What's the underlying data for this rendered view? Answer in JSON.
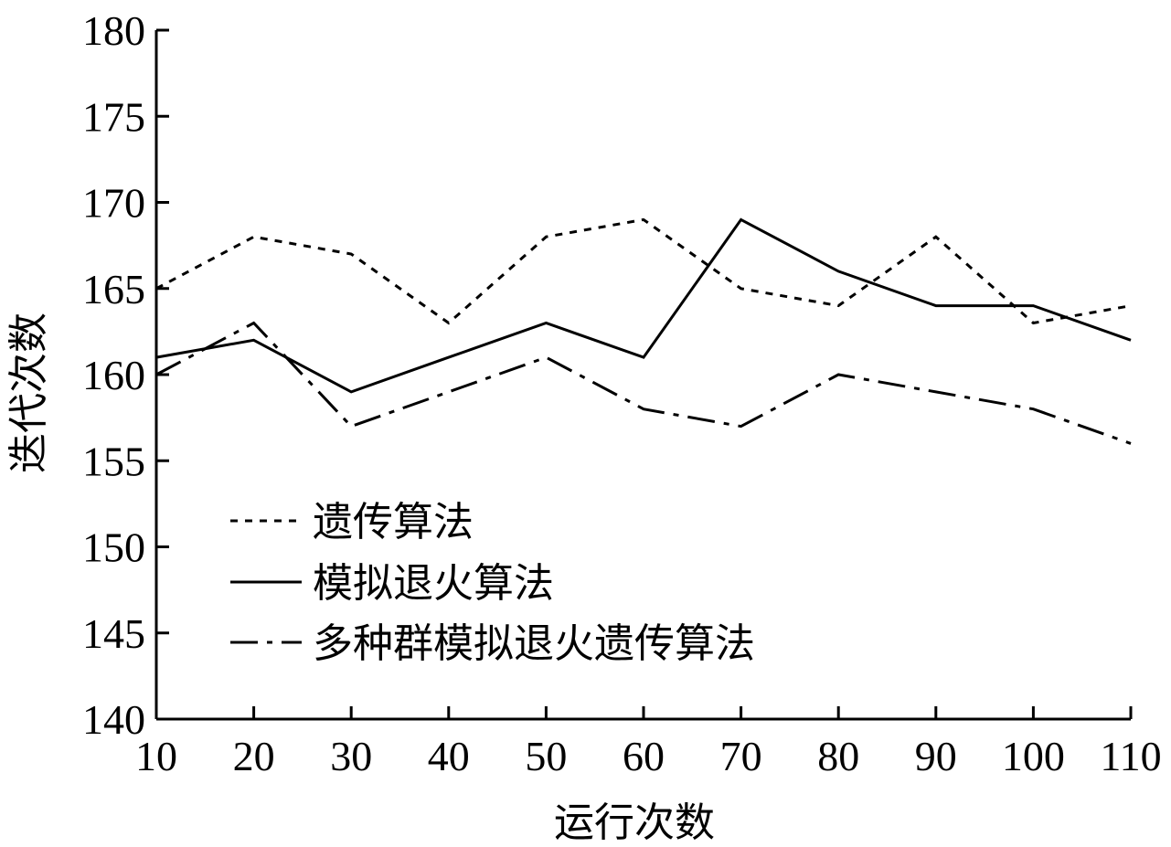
{
  "chart_data": {
    "type": "line",
    "title": "",
    "xlabel": "运行次数",
    "ylabel": "迭代次数",
    "x": [
      10,
      20,
      30,
      40,
      50,
      60,
      70,
      80,
      90,
      100,
      110
    ],
    "xlim": [
      10,
      110
    ],
    "ylim": [
      140,
      180
    ],
    "xticks": [
      "10",
      "20",
      "30",
      "40",
      "50",
      "60",
      "70",
      "80",
      "90",
      "100",
      "110"
    ],
    "yticks": [
      "140",
      "145",
      "150",
      "155",
      "160",
      "165",
      "170",
      "175",
      "180"
    ],
    "grid": false,
    "legend_position": "lower-left",
    "series": [
      {
        "name": "遗传算法",
        "style": "dotted",
        "color": "#000000",
        "values": [
          165,
          168,
          167,
          163,
          168,
          169,
          165,
          164,
          168,
          163,
          164
        ]
      },
      {
        "name": "模拟退火算法",
        "style": "solid",
        "color": "#000000",
        "values": [
          161,
          162,
          159,
          161,
          163,
          161,
          169,
          166,
          164,
          164,
          162
        ]
      },
      {
        "name": "多种群模拟退火遗传算法",
        "style": "dashdot",
        "color": "#000000",
        "values": [
          160,
          163,
          157,
          159,
          161,
          158,
          157,
          160,
          159,
          158,
          156
        ]
      }
    ]
  }
}
